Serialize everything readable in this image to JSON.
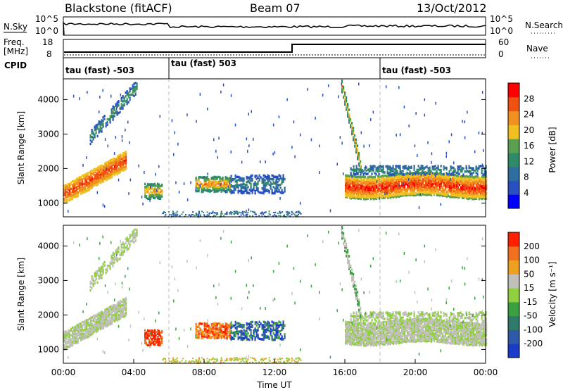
{
  "header": {
    "title": "Blackstone (fitACF)",
    "beam": "Beam 07",
    "date": "13/Oct/2012"
  },
  "status_panels": {
    "nsky_label": "N.Sky",
    "nsky_ticks": [
      "10^5",
      "10^0"
    ],
    "nsearch_label": "N.Search",
    "nsearch_ticks": [
      "10^5",
      "10^0"
    ],
    "freq_label": "Freq.",
    "freq_unit": "[MHz]",
    "freq_ticks": [
      "18",
      "8"
    ],
    "nave_label": "Nave",
    "nave_ticks": [
      "60",
      "0"
    ],
    "cpid_label": "CPID",
    "cpid_segments": [
      {
        "label": "tau (fast) -503",
        "start_hour": 0
      },
      {
        "label": "tau (fast) 503",
        "start_hour": 6
      },
      {
        "label": "tau (fast) -503",
        "start_hour": 18
      }
    ]
  },
  "chart_data": [
    {
      "type": "heatmap",
      "panel": "power",
      "xlabel": "Time UT",
      "ylabel": "Slant Range [km]",
      "xlim": [
        0,
        24
      ],
      "ylim": [
        600,
        4600
      ],
      "x_ticks": [
        "00:00",
        "04:00",
        "08:00",
        "12:00",
        "16:00",
        "20:00",
        "00:00"
      ],
      "y_ticks": [
        "1000",
        "2000",
        "3000",
        "4000"
      ],
      "colorbar": {
        "label": "Power [dB]",
        "ticks": [
          "4",
          "8",
          "12",
          "16",
          "20",
          "24",
          "28"
        ],
        "range": [
          0,
          30
        ],
        "colors": [
          "#0000ff",
          "#2a4fc0",
          "#2f6da0",
          "#2f8a6a",
          "#5aa050",
          "#f0c020",
          "#f09020",
          "#f05010",
          "#ff0000"
        ]
      },
      "dashed_lines_hour": [
        6,
        18
      ],
      "features": [
        {
          "name": "morning echo band",
          "x_start": 0,
          "x_end": 3.5,
          "y_start": 1200,
          "y_end": 2500
        },
        {
          "name": "high-range streak",
          "x_start": 1.5,
          "x_end": 4.2,
          "y_start": 2900,
          "y_end": 4400
        },
        {
          "name": "midday patches",
          "x_start": 7.5,
          "x_end": 12.5,
          "y_start": 1100,
          "y_end": 1900
        },
        {
          "name": "evening echo band",
          "x_start": 16,
          "x_end": 24,
          "y_start": 1200,
          "y_end": 2000
        },
        {
          "name": "post-16UT drop",
          "x_start": 15.8,
          "x_end": 16.8,
          "y_start": 1800,
          "y_end": 4400
        }
      ]
    },
    {
      "type": "heatmap",
      "panel": "velocity",
      "xlabel": "Time UT",
      "ylabel": "Slant Range [km]",
      "xlim": [
        0,
        24
      ],
      "ylim": [
        600,
        4600
      ],
      "x_ticks": [
        "00:00",
        "04:00",
        "08:00",
        "12:00",
        "16:00",
        "20:00",
        "00:00"
      ],
      "y_ticks": [
        "1000",
        "2000",
        "3000",
        "4000"
      ],
      "colorbar": {
        "label": "Velocity [m s⁻¹]",
        "ticks": [
          "200",
          "100",
          "50",
          "15",
          "-15",
          "-50",
          "-100",
          "-200"
        ],
        "colors": [
          "#1a3cc8",
          "#2f5aa8",
          "#2f7a6a",
          "#3aa040",
          "#8fd040",
          "#c0c0b8",
          "#f0a020",
          "#f07020",
          "#ff2000"
        ]
      },
      "dashed_lines_hour": [
        6,
        18
      ]
    }
  ]
}
